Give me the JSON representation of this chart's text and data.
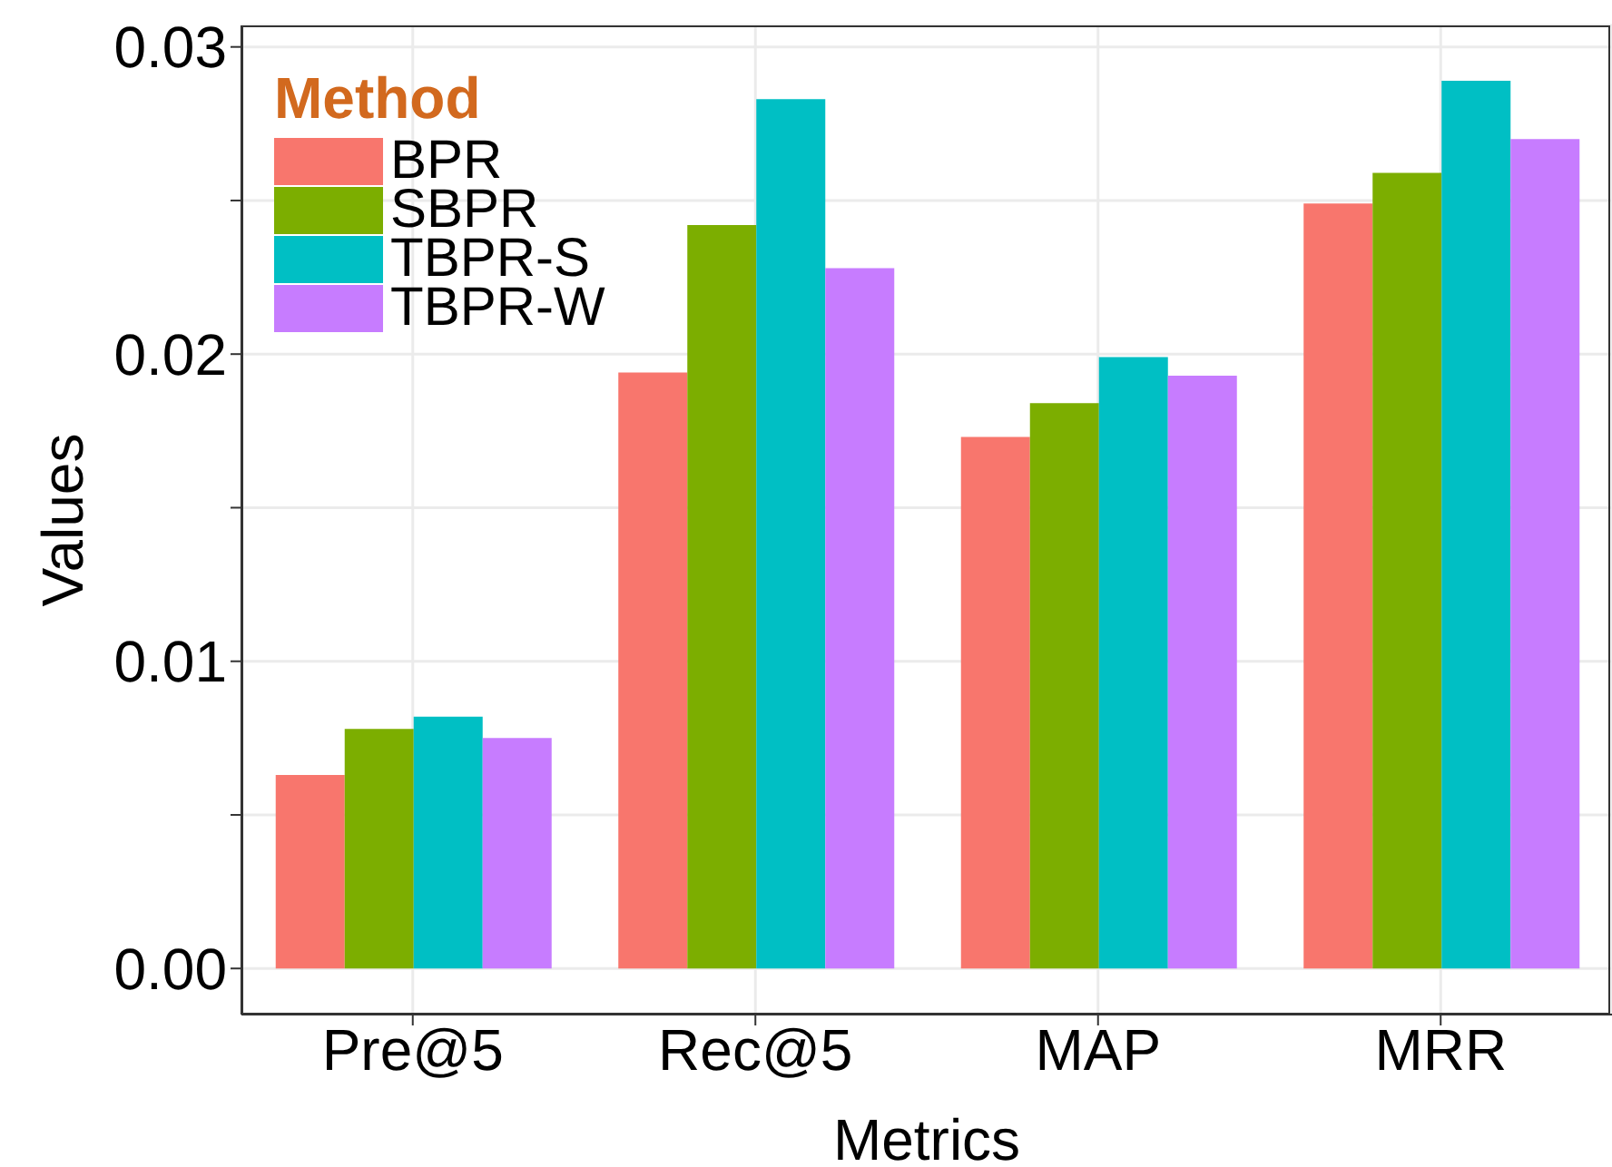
{
  "chart_data": {
    "type": "bar",
    "xlabel": "Metrics",
    "ylabel": "Values",
    "legend_title": "Method",
    "categories": [
      "Pre@5",
      "Rec@5",
      "MAP",
      "MRR"
    ],
    "series": [
      {
        "name": "BPR",
        "color": "#f8766d",
        "values": [
          0.0063,
          0.0194,
          0.0173,
          0.0249
        ]
      },
      {
        "name": "SBPR",
        "color": "#7cae00",
        "values": [
          0.0078,
          0.0242,
          0.0184,
          0.0259
        ]
      },
      {
        "name": "TBPR-S",
        "color": "#00bfc4",
        "values": [
          0.0082,
          0.0283,
          0.0199,
          0.0289
        ]
      },
      {
        "name": "TBPR-W",
        "color": "#c77cff",
        "values": [
          0.0075,
          0.0228,
          0.0193,
          0.027
        ]
      }
    ],
    "ylim": [
      -0.0015,
      0.0307
    ],
    "yticks": [
      {
        "value": 0,
        "label": "0.00"
      },
      {
        "value": 0.005,
        "label": null
      },
      {
        "value": 0.01,
        "label": "0.01"
      },
      {
        "value": 0.015,
        "label": null
      },
      {
        "value": 0.02,
        "label": "0.02"
      },
      {
        "value": 0.025,
        "label": null
      },
      {
        "value": 0.03,
        "label": "0.03"
      }
    ],
    "grid": true,
    "legend": "top left"
  }
}
